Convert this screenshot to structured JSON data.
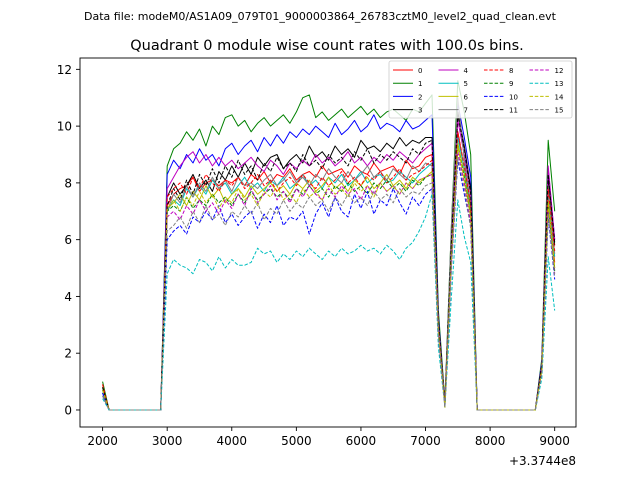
{
  "header": {
    "data_file": "Data file: modeM0/AS1A09_079T01_9000003864_26783cztM0_level2_quad_clean.evt"
  },
  "chart_data": {
    "type": "line",
    "title": "Quadrant 0 module wise count rates with 100.0s bins.",
    "xlabel": "",
    "ylabel": "",
    "x_offset_label": "+3.3744e8",
    "xlim": [
      1650,
      9330
    ],
    "ylim": [
      -0.6,
      12.4
    ],
    "x_ticks": [
      2000,
      3000,
      4000,
      5000,
      6000,
      7000,
      8000,
      9000
    ],
    "y_ticks": [
      0,
      2,
      4,
      6,
      8,
      10,
      12
    ],
    "x_tick_labels": [
      "2000",
      "3000",
      "4000",
      "5000",
      "6000",
      "7000",
      "8000",
      "9000"
    ],
    "y_tick_labels": [
      "0",
      "2",
      "4",
      "6",
      "8",
      "10",
      "12"
    ],
    "legend_position": "top-right",
    "x": [
      2000,
      2100,
      2900,
      3000,
      3100,
      3200,
      3300,
      3400,
      3500,
      3600,
      3700,
      3800,
      3900,
      4000,
      4100,
      4200,
      4300,
      4400,
      4500,
      4600,
      4700,
      4800,
      4900,
      5000,
      5100,
      5200,
      5300,
      5400,
      5500,
      5600,
      5700,
      5800,
      5900,
      6000,
      6100,
      6200,
      6300,
      6400,
      6500,
      6600,
      6700,
      6800,
      6900,
      7000,
      7100,
      7200,
      7300,
      7400,
      7500,
      7600,
      7700,
      7800,
      7900,
      8700,
      8800,
      8900,
      9000
    ],
    "series": [
      {
        "name": "0",
        "color": "#ff0000",
        "style": "solid",
        "values": [
          0.9,
          0,
          0,
          7.2,
          7.6,
          7.8,
          7.9,
          8.2,
          7.7,
          8.0,
          8.1,
          7.9,
          8.1,
          8.0,
          8.2,
          7.9,
          8.3,
          8.1,
          8.4,
          8.0,
          8.3,
          8.2,
          8.5,
          8.1,
          8.3,
          8.4,
          8.2,
          8.6,
          8.3,
          8.4,
          8.5,
          8.2,
          8.6,
          8.4,
          8.3,
          8.7,
          8.4,
          8.5,
          8.6,
          8.3,
          8.8,
          8.5,
          8.6,
          8.9,
          9.0,
          3.0,
          0.2,
          5.5,
          9.8,
          8.5,
          7.2,
          0,
          0,
          0,
          1.5,
          7.5,
          5.2
        ]
      },
      {
        "name": "1",
        "color": "#008000",
        "style": "solid",
        "values": [
          1.0,
          0,
          0,
          8.6,
          9.2,
          9.4,
          9.8,
          9.5,
          9.9,
          9.3,
          10.0,
          9.7,
          10.3,
          10.4,
          10.0,
          10.2,
          9.8,
          10.1,
          10.3,
          10.0,
          10.2,
          10.4,
          10.1,
          10.5,
          11.0,
          11.1,
          10.3,
          10.5,
          10.2,
          10.4,
          10.6,
          10.3,
          10.5,
          10.7,
          10.4,
          10.6,
          10.3,
          10.5,
          10.6,
          10.4,
          10.2,
          10.6,
          10.5,
          10.8,
          11.1,
          3.5,
          0.3,
          6.5,
          11.6,
          10.5,
          9.0,
          0,
          0,
          0,
          1.8,
          9.5,
          7.0
        ]
      },
      {
        "name": "2",
        "color": "#0000ff",
        "style": "solid",
        "values": [
          0.6,
          0,
          0,
          8.3,
          8.8,
          8.5,
          9.0,
          8.7,
          9.2,
          8.8,
          9.0,
          8.6,
          9.2,
          9.4,
          9.0,
          9.3,
          9.5,
          9.1,
          9.6,
          9.3,
          9.7,
          9.4,
          9.8,
          9.6,
          9.9,
          9.7,
          10.0,
          9.8,
          9.6,
          10.1,
          9.7,
          9.9,
          10.2,
          9.8,
          10.0,
          10.4,
          9.9,
          10.1,
          10.0,
          9.8,
          10.2,
          9.9,
          10.0,
          10.2,
          10.4,
          3.3,
          0.2,
          6.2,
          10.8,
          9.6,
          8.2,
          0,
          0,
          0,
          1.7,
          8.5,
          6.0
        ]
      },
      {
        "name": "3",
        "color": "#000000",
        "style": "solid",
        "values": [
          0.8,
          0,
          0,
          7.5,
          8.0,
          7.6,
          7.9,
          8.3,
          7.8,
          8.1,
          7.7,
          8.4,
          8.1,
          8.6,
          8.2,
          8.7,
          8.3,
          8.9,
          8.6,
          8.9,
          9.0,
          8.5,
          8.8,
          9.0,
          8.7,
          9.3,
          8.9,
          9.1,
          8.8,
          9.3,
          9.0,
          9.2,
          8.9,
          9.5,
          9.2,
          9.3,
          9.1,
          9.4,
          9.2,
          9.6,
          9.3,
          9.5,
          9.4,
          9.6,
          9.6,
          3.2,
          0.2,
          6.0,
          10.5,
          9.3,
          7.8,
          0,
          0,
          0,
          1.6,
          8.2,
          5.8
        ]
      },
      {
        "name": "4",
        "color": "#bf00bf",
        "style": "solid",
        "values": [
          0.7,
          0,
          0,
          7.8,
          8.2,
          8.6,
          8.9,
          9.1,
          8.7,
          9.0,
          8.6,
          8.9,
          8.6,
          8.8,
          8.5,
          8.7,
          8.9,
          8.6,
          8.4,
          8.8,
          8.6,
          8.3,
          8.7,
          8.5,
          8.8,
          8.6,
          9.0,
          8.7,
          8.9,
          8.6,
          8.8,
          9.1,
          8.7,
          8.9,
          8.6,
          8.9,
          8.7,
          9.0,
          8.8,
          9.1,
          8.9,
          8.7,
          9.0,
          9.2,
          9.4,
          3.1,
          0.2,
          5.8,
          10.2,
          9.0,
          7.6,
          0,
          0,
          0,
          1.6,
          8.6,
          6.0
        ]
      },
      {
        "name": "5",
        "color": "#00bfbf",
        "style": "solid",
        "values": [
          0.6,
          0,
          0,
          7.0,
          7.4,
          7.2,
          7.8,
          7.5,
          7.9,
          7.6,
          8.1,
          7.8,
          8.0,
          7.6,
          7.9,
          8.2,
          7.8,
          8.0,
          7.7,
          8.1,
          7.9,
          8.2,
          7.8,
          8.0,
          8.3,
          7.9,
          8.1,
          7.8,
          8.2,
          8.0,
          8.3,
          7.9,
          8.1,
          8.4,
          8.0,
          8.2,
          8.3,
          8.0,
          8.1,
          8.4,
          8.2,
          8.0,
          8.3,
          8.5,
          8.7,
          2.9,
          0.2,
          5.4,
          9.6,
          8.5,
          7.0,
          0,
          0,
          0,
          1.5,
          7.6,
          5.4
        ]
      },
      {
        "name": "6",
        "color": "#bfbf00",
        "style": "solid",
        "values": [
          0.8,
          0,
          0,
          7.1,
          7.3,
          7.6,
          7.2,
          7.7,
          7.4,
          7.9,
          7.5,
          7.8,
          7.3,
          7.6,
          7.8,
          7.5,
          7.9,
          7.6,
          7.8,
          8.0,
          7.7,
          7.9,
          7.6,
          8.0,
          7.8,
          8.1,
          7.7,
          7.9,
          8.2,
          7.8,
          8.0,
          7.7,
          8.1,
          7.9,
          8.2,
          7.8,
          8.0,
          8.3,
          7.9,
          8.1,
          7.8,
          8.2,
          8.0,
          8.2,
          8.4,
          2.8,
          0.2,
          5.3,
          9.4,
          8.3,
          6.9,
          0,
          0,
          0,
          1.4,
          7.4,
          5.0
        ]
      },
      {
        "name": "7",
        "color": "#808080",
        "style": "solid",
        "values": [
          0.5,
          0,
          0,
          7.0,
          7.6,
          7.3,
          7.9,
          7.5,
          8.0,
          7.7,
          8.2,
          7.8,
          8.1,
          7.7,
          8.2,
          7.9,
          8.0,
          7.8,
          8.1,
          8.3,
          7.9,
          8.1,
          8.4,
          8.0,
          8.2,
          7.9,
          8.3,
          8.1,
          8.5,
          8.2,
          8.0,
          8.4,
          8.1,
          8.3,
          8.6,
          8.2,
          8.4,
          8.1,
          8.5,
          8.3,
          8.1,
          8.6,
          8.4,
          8.7,
          8.6,
          3.0,
          0.1,
          6.5,
          11.0,
          8.8,
          7.3,
          0,
          0,
          0,
          1.5,
          7.9,
          5.5
        ]
      },
      {
        "name": "8",
        "color": "#ff0000",
        "style": "dashed",
        "values": [
          0.9,
          0,
          0,
          7.5,
          7.8,
          8.0,
          7.6,
          8.2,
          7.8,
          8.3,
          8.0,
          7.7,
          8.1,
          7.9,
          8.2,
          7.8,
          8.0,
          8.3,
          7.9,
          8.1,
          7.7,
          8.0,
          8.2,
          7.9,
          8.3,
          8.0,
          7.8,
          8.2,
          7.9,
          8.1,
          8.4,
          8.0,
          8.2,
          7.9,
          8.3,
          8.1,
          8.4,
          8.0,
          8.2,
          8.5,
          8.1,
          8.3,
          8.4,
          8.6,
          8.8,
          3.0,
          0.2,
          5.6,
          9.8,
          8.6,
          7.2,
          0,
          0,
          0,
          1.5,
          7.8,
          5.6
        ]
      },
      {
        "name": "9",
        "color": "#008000",
        "style": "dashed",
        "values": [
          0.7,
          0,
          0,
          7.0,
          7.2,
          7.0,
          7.5,
          7.1,
          7.4,
          7.2,
          7.6,
          7.3,
          7.5,
          7.2,
          7.6,
          7.3,
          7.7,
          7.4,
          7.6,
          7.8,
          7.5,
          7.7,
          7.4,
          7.8,
          7.6,
          7.9,
          7.6,
          7.8,
          7.5,
          7.9,
          7.7,
          8.0,
          7.7,
          7.9,
          7.6,
          8.0,
          7.8,
          8.1,
          7.8,
          8.0,
          7.7,
          8.1,
          7.9,
          8.2,
          8.3,
          2.7,
          0.1,
          5.2,
          9.3,
          8.2,
          6.8,
          0,
          0,
          0,
          1.4,
          7.2,
          4.9
        ]
      },
      {
        "name": "10",
        "color": "#0000ff",
        "style": "dashed",
        "values": [
          0.6,
          0,
          0,
          6.0,
          6.3,
          6.5,
          6.2,
          6.8,
          6.6,
          7.0,
          6.7,
          7.2,
          6.6,
          6.9,
          6.5,
          6.8,
          7.0,
          6.4,
          6.9,
          6.6,
          7.2,
          6.5,
          6.8,
          6.7,
          7.0,
          6.2,
          6.9,
          7.3,
          6.8,
          7.5,
          7.0,
          6.8,
          7.6,
          7.1,
          7.7,
          6.9,
          7.4,
          7.2,
          7.8,
          7.3,
          6.9,
          7.5,
          7.2,
          7.6,
          7.8,
          2.6,
          0.1,
          5.0,
          8.8,
          7.6,
          6.5,
          0,
          0,
          0,
          1.3,
          6.8,
          4.6
        ]
      },
      {
        "name": "11",
        "color": "#000000",
        "style": "dashed",
        "values": [
          0.8,
          0,
          0,
          7.2,
          7.8,
          7.4,
          8.1,
          7.6,
          8.3,
          7.9,
          8.5,
          8.0,
          8.6,
          8.2,
          8.8,
          8.3,
          8.6,
          8.1,
          8.7,
          8.4,
          8.9,
          8.5,
          8.7,
          8.4,
          9.0,
          8.6,
          8.8,
          8.5,
          9.0,
          8.7,
          8.9,
          8.6,
          9.1,
          8.8,
          9.2,
          8.7,
          9.0,
          8.8,
          9.1,
          8.9,
          8.7,
          9.2,
          9.0,
          9.4,
          9.5,
          3.1,
          0.2,
          5.9,
          10.4,
          9.2,
          7.6,
          0,
          0,
          0,
          1.6,
          8.3,
          5.9
        ]
      },
      {
        "name": "12",
        "color": "#bf00bf",
        "style": "dashed",
        "values": [
          0.5,
          0,
          0,
          6.8,
          7.0,
          6.7,
          7.2,
          6.9,
          7.4,
          7.0,
          7.3,
          6.9,
          7.4,
          7.1,
          7.6,
          7.2,
          7.8,
          7.3,
          7.6,
          7.9,
          7.4,
          7.7,
          7.3,
          7.8,
          7.5,
          7.9,
          7.6,
          7.4,
          7.8,
          7.5,
          7.9,
          7.6,
          7.8,
          7.4,
          7.9,
          7.6,
          8.0,
          7.7,
          7.9,
          7.6,
          8.0,
          7.8,
          8.1,
          8.2,
          8.3,
          2.7,
          0.1,
          5.2,
          9.1,
          8.0,
          6.6,
          0,
          0,
          0,
          1.3,
          7.0,
          4.8
        ]
      },
      {
        "name": "13",
        "color": "#00bfbf",
        "style": "dashed",
        "values": [
          0.4,
          0,
          0,
          4.8,
          5.3,
          5.1,
          5.0,
          4.8,
          5.3,
          5.2,
          4.9,
          5.4,
          5.0,
          5.3,
          5.1,
          5.1,
          5.2,
          5.7,
          5.5,
          5.6,
          5.2,
          5.5,
          5.3,
          5.6,
          5.4,
          5.7,
          5.5,
          5.3,
          5.6,
          5.4,
          5.7,
          5.5,
          5.6,
          5.8,
          5.6,
          5.7,
          5.5,
          5.8,
          5.6,
          5.3,
          5.7,
          5.9,
          6.3,
          6.8,
          7.6,
          2.2,
          0.1,
          4.0,
          7.4,
          6.1,
          5.2,
          0,
          0,
          0,
          1.1,
          5.4,
          3.5
        ]
      },
      {
        "name": "14",
        "color": "#bfbf00",
        "style": "dashed",
        "values": [
          0.7,
          0,
          0,
          7.1,
          7.4,
          7.0,
          7.5,
          7.2,
          7.7,
          7.3,
          7.6,
          7.1,
          7.5,
          7.3,
          7.8,
          7.4,
          7.6,
          7.2,
          7.7,
          7.5,
          7.9,
          7.4,
          7.6,
          7.3,
          7.8,
          7.5,
          7.7,
          7.4,
          7.9,
          7.6,
          7.8,
          7.5,
          8.0,
          7.7,
          7.9,
          7.5,
          8.0,
          7.7,
          7.9,
          7.6,
          8.0,
          7.8,
          8.1,
          8.2,
          8.4,
          2.8,
          0.1,
          5.3,
          9.3,
          8.1,
          6.8,
          0,
          0,
          0,
          1.4,
          7.3,
          5.0
        ]
      },
      {
        "name": "15",
        "color": "#808080",
        "style": "dashed",
        "values": [
          0.5,
          0,
          0,
          6.3,
          6.5,
          6.8,
          6.4,
          7.0,
          6.6,
          7.2,
          6.7,
          6.9,
          6.5,
          7.0,
          6.8,
          7.2,
          6.9,
          7.3,
          6.7,
          7.1,
          6.9,
          7.4,
          7.0,
          7.3,
          7.1,
          7.5,
          7.2,
          7.4,
          7.0,
          7.5,
          7.2,
          7.6,
          7.3,
          7.5,
          7.2,
          7.7,
          7.4,
          7.6,
          7.3,
          7.8,
          7.5,
          7.7,
          7.6,
          7.9,
          8.0,
          2.6,
          0.1,
          5.0,
          8.9,
          7.8,
          6.4,
          0,
          0,
          0,
          1.3,
          6.9,
          4.7
        ]
      }
    ]
  }
}
